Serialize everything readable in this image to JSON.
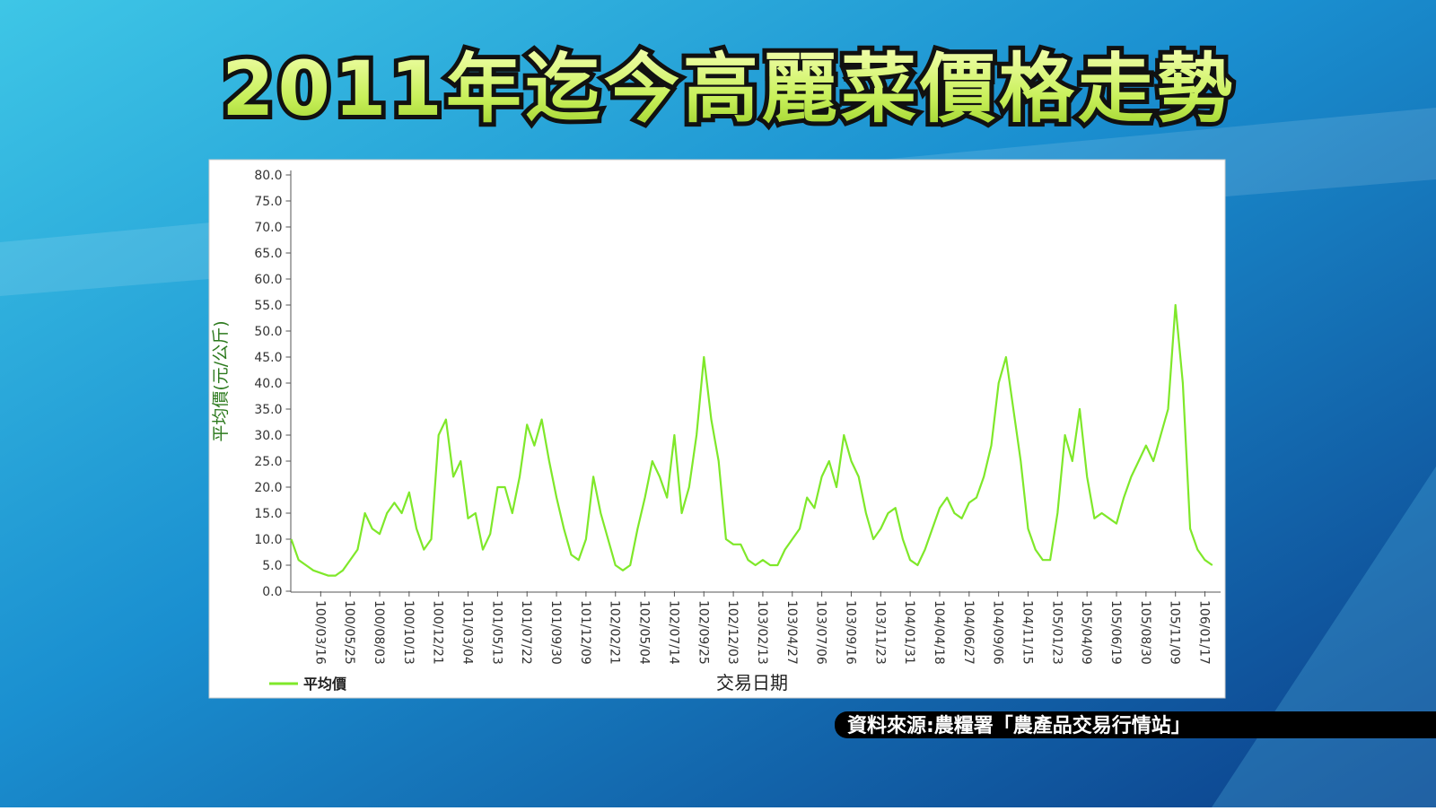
{
  "chart_data": {
    "type": "line",
    "title": "2011年迄今高麗菜價格走勢",
    "source": "資料來源:農糧署「農產品交易行情站」",
    "x_label": "交易日期",
    "y_label": "平均價(元/公斤)",
    "categories": [
      null,
      null,
      null,
      null,
      "100/03/16",
      null,
      null,
      null,
      "100/05/25",
      null,
      null,
      null,
      "100/08/03",
      null,
      null,
      null,
      "100/10/13",
      null,
      null,
      null,
      "100/12/21",
      null,
      null,
      null,
      "101/03/04",
      null,
      null,
      null,
      "101/05/13",
      null,
      null,
      null,
      "101/07/22",
      null,
      null,
      null,
      "101/09/30",
      null,
      null,
      null,
      "101/12/09",
      null,
      null,
      null,
      "102/02/21",
      null,
      null,
      null,
      "102/05/04",
      null,
      null,
      null,
      "102/07/14",
      null,
      null,
      null,
      "102/09/25",
      null,
      null,
      null,
      "102/12/03",
      null,
      null,
      null,
      "103/02/13",
      null,
      null,
      null,
      "103/04/27",
      null,
      null,
      null,
      "103/07/06",
      null,
      null,
      null,
      "103/09/16",
      null,
      null,
      null,
      "103/11/23",
      null,
      null,
      null,
      "104/01/31",
      null,
      null,
      null,
      "104/04/18",
      null,
      null,
      null,
      "104/06/27",
      null,
      null,
      null,
      "104/09/06",
      null,
      null,
      null,
      "104/11/15",
      null,
      null,
      null,
      "105/01/23",
      null,
      null,
      null,
      "105/04/09",
      null,
      null,
      null,
      "105/06/19",
      null,
      null,
      null,
      "105/08/30",
      null,
      null,
      null,
      "105/11/09",
      null,
      null,
      null,
      "106/01/17",
      null
    ],
    "series": [
      {
        "name": "平均價",
        "color": "#7fe82a",
        "values": [
          10,
          6,
          5,
          4,
          3.5,
          3,
          3,
          4,
          6,
          8,
          15,
          12,
          11,
          15,
          17,
          15,
          19,
          12,
          8,
          10,
          30,
          33,
          22,
          25,
          14,
          15,
          8,
          11,
          20,
          20,
          15,
          22,
          32,
          28,
          33,
          25,
          18,
          12,
          7,
          6,
          10,
          22,
          15,
          10,
          5,
          4,
          5,
          12,
          18,
          25,
          22,
          18,
          30,
          15,
          20,
          30,
          45,
          33,
          25,
          10,
          9,
          9,
          6,
          5,
          6,
          5,
          5,
          8,
          10,
          12,
          18,
          16,
          22,
          25,
          20,
          30,
          25,
          22,
          15,
          10,
          12,
          15,
          16,
          10,
          6,
          5,
          8,
          12,
          16,
          18,
          15,
          14,
          17,
          18,
          22,
          28,
          40,
          45,
          35,
          25,
          12,
          8,
          6,
          6,
          15,
          30,
          25,
          35,
          22,
          14,
          15,
          14,
          13,
          18,
          22,
          25,
          28,
          25,
          30,
          35,
          55,
          40,
          12,
          8,
          6,
          5
        ]
      }
    ],
    "ylim": [
      0,
      80
    ],
    "yticks": [
      {
        "value": 0,
        "label": "0.0"
      },
      {
        "value": 5,
        "label": "5.0"
      },
      {
        "value": 10,
        "label": "10.0"
      },
      {
        "value": 15,
        "label": "15.0"
      },
      {
        "value": 20,
        "label": "20.0"
      },
      {
        "value": 25,
        "label": "25.0"
      },
      {
        "value": 30,
        "label": "30.0"
      },
      {
        "value": 35,
        "label": "35.0"
      },
      {
        "value": 40,
        "label": "40.0"
      },
      {
        "value": 45,
        "label": "45.0"
      },
      {
        "value": 50,
        "label": "50.0"
      },
      {
        "value": 55,
        "label": "55.0"
      },
      {
        "value": 60,
        "label": "60.0"
      },
      {
        "value": 65,
        "label": "65.0"
      },
      {
        "value": 70,
        "label": "70.0"
      },
      {
        "value": 75,
        "label": "75.0"
      },
      {
        "value": 80,
        "label": "80.0"
      }
    ],
    "grid": false,
    "legend": "bottom-left"
  }
}
